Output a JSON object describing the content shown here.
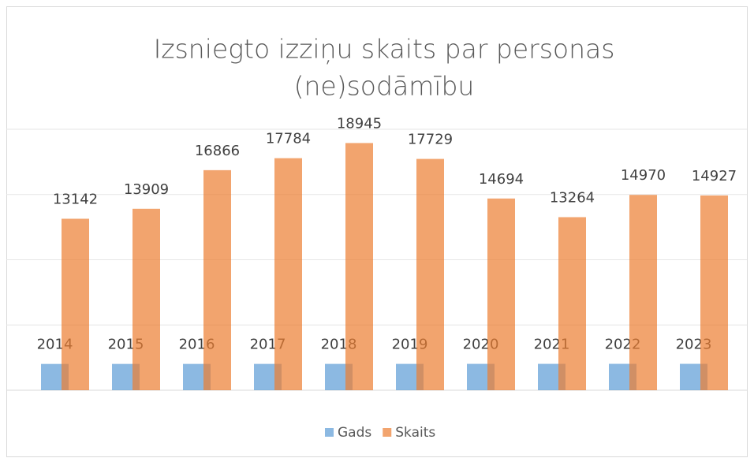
{
  "chart_data": {
    "type": "bar",
    "title": [
      "Izsniegto izziņu skaits par personas",
      "(ne)sodāmību"
    ],
    "series": [
      {
        "name": "Gads",
        "color": "#5b9bd5",
        "values": [
          2014,
          2015,
          2016,
          2017,
          2018,
          2019,
          2020,
          2021,
          2022,
          2023
        ]
      },
      {
        "name": "Skaits",
        "color": "#ed7d31",
        "values": [
          13142,
          13909,
          16866,
          17784,
          18945,
          17729,
          14694,
          13264,
          14970,
          14927
        ]
      }
    ],
    "ylim": [
      0,
      20000
    ],
    "yticks": [
      0,
      5000,
      10000,
      15000,
      20000
    ],
    "grid": true,
    "legend": "bottom"
  }
}
